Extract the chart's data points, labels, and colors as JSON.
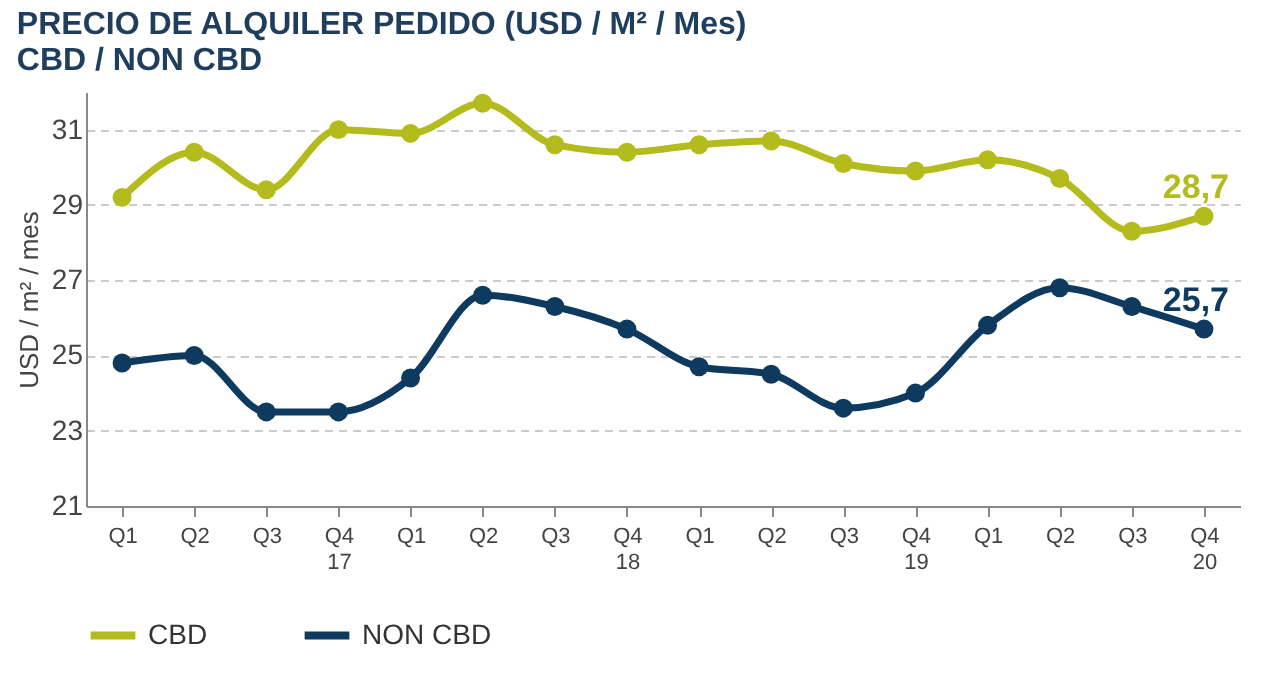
{
  "chart_data": {
    "type": "line",
    "title": [
      "PRECIO DE ALQUILER PEDIDO (USD / M² / Mes)",
      "CBD / NON CBD"
    ],
    "ylabel": "USD / m² / mes",
    "categories": [
      "Q1",
      "Q2",
      "Q3",
      "Q4\n17",
      "Q1",
      "Q2",
      "Q3",
      "Q4\n18",
      "Q1",
      "Q2",
      "Q3",
      "Q4\n19",
      "Q1",
      "Q2",
      "Q3",
      "Q4\n20"
    ],
    "series": [
      {
        "name": "CBD",
        "color": "#b3bc1c",
        "values": [
          29.2,
          30.4,
          29.4,
          31.0,
          30.9,
          31.7,
          30.6,
          30.4,
          30.6,
          30.7,
          30.1,
          29.9,
          30.2,
          29.7,
          28.3,
          28.7
        ],
        "value_labels": [
          null,
          null,
          null,
          null,
          null,
          null,
          null,
          null,
          null,
          null,
          null,
          null,
          null,
          null,
          null,
          "28,7"
        ]
      },
      {
        "name": "NON CBD",
        "color": "#0f3a5f",
        "values": [
          24.8,
          25.0,
          23.5,
          23.5,
          24.4,
          26.6,
          26.3,
          25.7,
          24.7,
          24.5,
          23.6,
          24.0,
          25.8,
          26.8,
          26.3,
          25.7
        ],
        "value_labels": [
          null,
          null,
          null,
          null,
          null,
          null,
          null,
          null,
          null,
          null,
          null,
          null,
          null,
          null,
          null,
          "25,7"
        ]
      }
    ],
    "ylim": [
      21,
      32
    ],
    "yticks": [
      21,
      23,
      25,
      27,
      29,
      31
    ],
    "grid": "y",
    "legend": "bottom",
    "marker": "circle",
    "line_style": "solid"
  }
}
